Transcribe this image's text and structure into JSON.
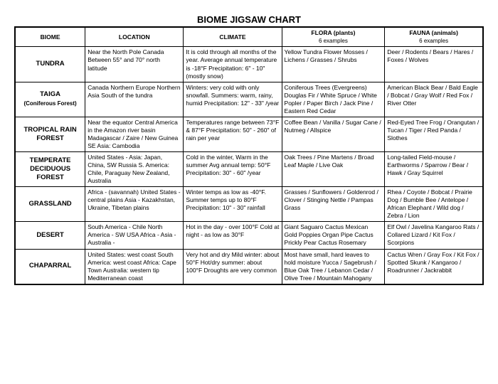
{
  "title": "BIOME JIGSAW CHART",
  "headers": {
    "biome": "BIOME",
    "location": "LOCATION",
    "climate": "CLIMATE",
    "flora": "FLORA (plants)",
    "flora_sub": "6 examples",
    "fauna": "FAUNA (animals)",
    "fauna_sub": "6 examples"
  },
  "rows": [
    {
      "name": "TUNDRA",
      "sub": "",
      "location": "Near the North Pole     Canada        Between 55° and 70° north latitude",
      "climate": "It is cold through all months of the year.  Average annual temperature is -18°F  Precipitation: 6\" - 10\" (mostly snow)",
      "flora": "Yellow Tundra Flower  Mosses  /  Lichens  /  Grasses  /  Shrubs",
      "fauna": "Deer  /  Rodents  /  Bears  /  Hares  /  Foxes  /  Wolves"
    },
    {
      "name": "TAIGA",
      "sub": "(Coniferous Forest)",
      "location": "Canada\nNorthern Europe\nNorthern Asia            South of the tundra",
      "climate": "Winters: very cold with only snowfall.\nSummers: warm, rainy, humid\nPrecipitation: 12\" - 33\" /year",
      "flora": "Coniferous Trees (Evergreens)  Douglas Fir  /  White Spruce  /  White Popler  /  Paper Birch  /  Jack Pine  /  Eastern Red Cedar",
      "fauna": "American Black Bear  /  Bald Eagle  /  Bobcat  /  Gray Wolf  /  Red Fox  /  River Otter"
    },
    {
      "name": "TROPICAL RAIN FOREST",
      "sub": "",
      "location": "Near the equator\nCentral America in the Amazon river basin    Madagascar  /  Zaire  /  New Guinea  SE Asia: Cambodia",
      "climate": "Temperatures range between 73°F & 87°F\nPrecipitation: 50\" - 260\" of rain per year",
      "flora": "Coffee Bean  /  Vanilla  /  Sugar Cane  /  Nutmeg  /  Allspice",
      "fauna": "Red-Eyed Tree Frog  /  Orangutan  /  Tucan  /  Tiger  /  Red Panda  /  Slothes"
    },
    {
      "name": "TEMPERATE DECIDUOUS FOREST",
      "sub": "",
      "location": "United States -             Asia: Japan, China, SW Russia\nS. America: Chile, Paraguay  New Zealand, Australia",
      "climate": "Cold in the winter, Warm in the summer                    Avg annual temp: 50°F\nPrecipitation: 30\" - 60\" /year",
      "flora": "Oak Trees  /   Pine Martens  /  Broad Leaf Maple  /   Live Oak",
      "fauna": "Long-tailed Field-mouse  /  Earthworms  /  Sparrow  /  Bear  /  Hawk  /  Gray Squirrel"
    },
    {
      "name": "GRASSLAND",
      "sub": "",
      "location": "Africa - (savannah)\nUnited States - central plains\nAsia - Kazakhstan, Ukraine, Tibetan plains",
      "climate": "Winter temps as low as -40°F.  Summer temps up to 80°F  Precipitation: 10\" - 30\" rainfall",
      "flora": "Grasses  /  Sunflowers  /  Goldenrod  /  Clover  /  Stinging Nettle  /  Pampas Grass",
      "fauna": "Rhea  /  Coyote  /  Bobcat  /  Prairie Dog  /  Bumble Bee  /  Antelope  /  African Elephant  /  Wild dog  /  Zebra  /  Lion"
    },
    {
      "name": "DESERT",
      "sub": "",
      "location": "South America - Chile     North America - SW USA    Africa - Asia -\nAustralia -",
      "climate": "Hot in the day - over 100°F  Cold at night - as low as 30°F",
      "flora": "Giant Saguaro Cactus Mexican Gold Poppies  Organ Pipe Cactus        Prickly Pear Cactus    Rosemary",
      "fauna": "Elf Owl  /  Javelina  Kangaroo Rats  /  Collared Lizard  /  Kit Fox  /  Scorpions"
    },
    {
      "name": "CHAPARRAL",
      "sub": "",
      "location": "United States: west coast  South America: west coast  Africa: Cape Town\nAustralia: western tip  Mediterranean coast",
      "climate": "Very hot and dry           Mild winter: about 50°F      Hot/dry summer: about 100°F  Droughts are very common",
      "flora": "Most have small, hard leaves to hold moisture    Yucca  /  Sagebrush  /  Blue Oak Tree  /  Lebanon Cedar  /  Olive Tree  /  Mountain Mahogany",
      "fauna": "Cactus Wren  /  Gray Fox  /  Kit Fox  /  Spotted Skunk  /  Kangaroo  /  Roadrunner  /  Jackrabbit"
    }
  ]
}
